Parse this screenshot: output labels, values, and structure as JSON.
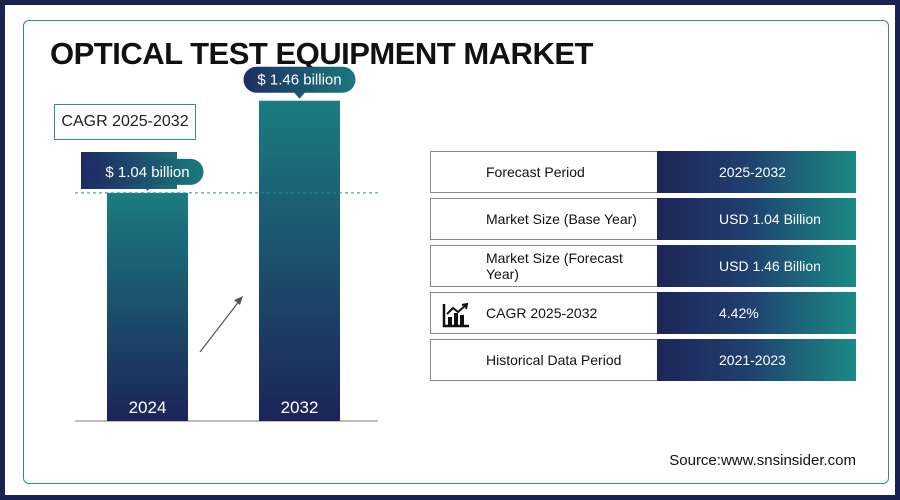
{
  "title": "OPTICAL TEST EQUIPMENT MARKET",
  "cagr": {
    "label": "CAGR 2025-2032",
    "value": "4.42%"
  },
  "chart_data": {
    "type": "bar",
    "categories": [
      "2024",
      "2032"
    ],
    "values": [
      1.04,
      1.46
    ],
    "data_labels": [
      "$ 1.04 billion",
      "$ 1.46 billion"
    ],
    "title": "",
    "xlabel": "",
    "ylabel": "",
    "ylim": [
      0,
      1.6
    ],
    "colors": {
      "bar_top": "#1b7c80",
      "bar_bottom": "#1c2458",
      "callout": "#1a6f79",
      "dashed_line": "#2b8c88"
    }
  },
  "summary_rows": [
    {
      "label": "Forecast Period",
      "value": "2025-2032",
      "icon": ""
    },
    {
      "label": "Market Size (Base Year)",
      "value": "USD 1.04 Billion",
      "icon": ""
    },
    {
      "label": "Market Size (Forecast Year)",
      "value": "USD 1.46 Billion",
      "icon": ""
    },
    {
      "label": "CAGR 2025-2032",
      "value": "4.42%",
      "icon": "bar-chart-trend-icon"
    },
    {
      "label": "Historical Data Period",
      "value": "2021-2023",
      "icon": ""
    }
  ],
  "source": "Source:www.snsinsider.com"
}
